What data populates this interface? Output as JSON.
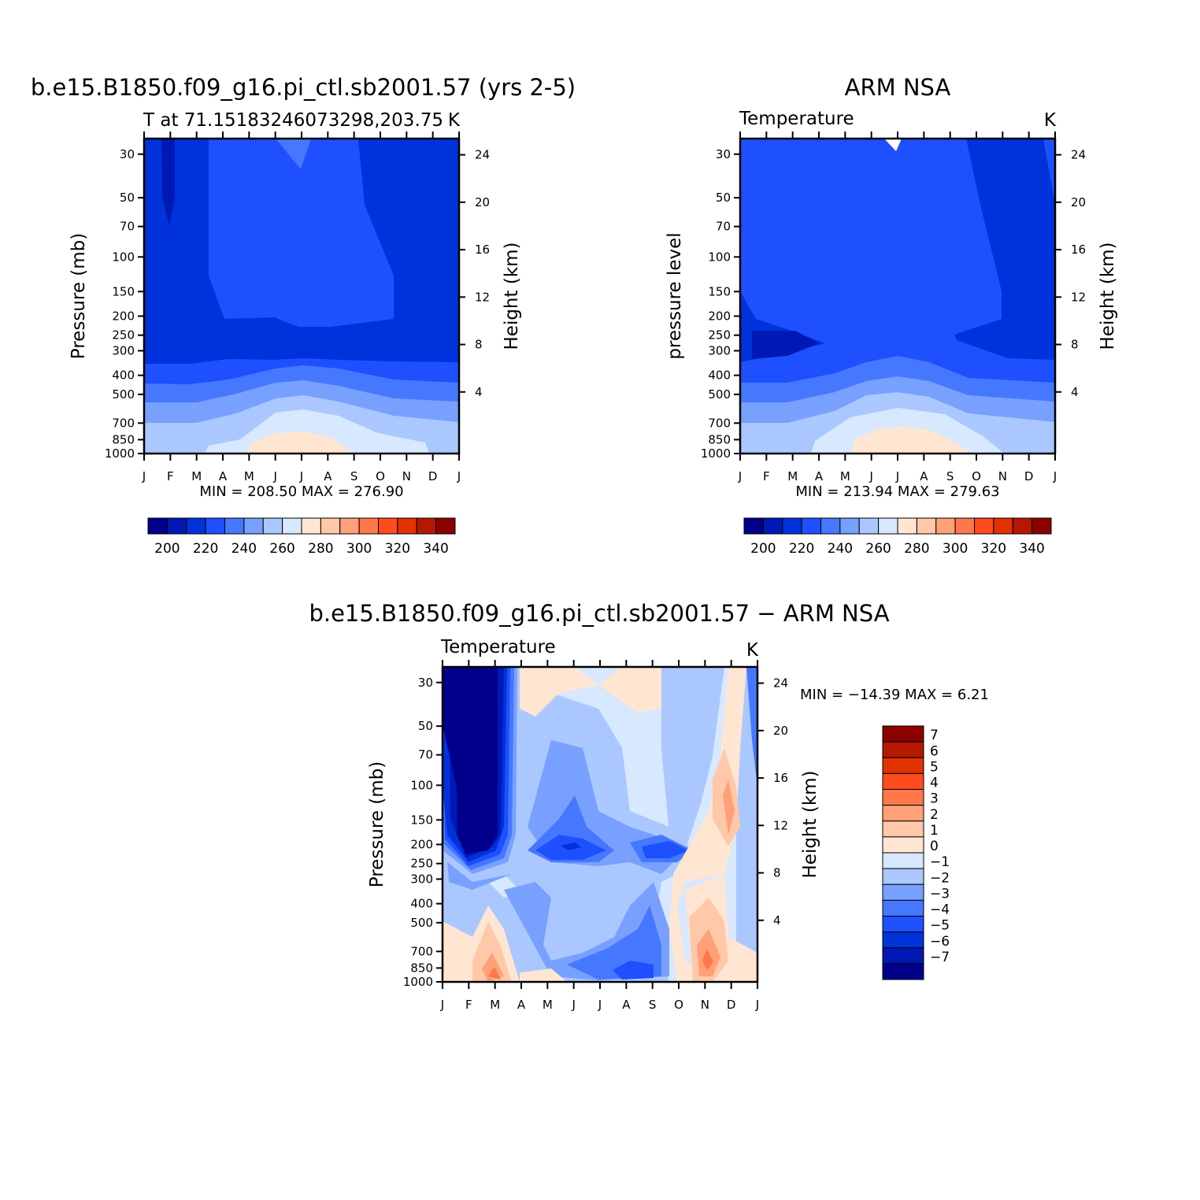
{
  "panels": [
    {
      "id": "model",
      "main_title": "b.e15.B1850.f09_g16.pi_ctl.sb2001.57 (yrs 2-5)",
      "left_label": "T at 71.15183246073298,203.75",
      "right_label": "K",
      "ylabel": "Pressure (mb)",
      "y2label": "Height (km)",
      "minmax": "MIN = 208.50 MAX = 276.90"
    },
    {
      "id": "obs",
      "main_title": "ARM NSA",
      "left_label": "Temperature",
      "right_label": "K",
      "ylabel": "pressure level",
      "y2label": "Height (km)",
      "minmax": "MIN = 213.94 MAX = 279.63"
    },
    {
      "id": "diff",
      "main_title": "b.e15.B1850.f09_g16.pi_ctl.sb2001.57 − ARM NSA",
      "left_label": "Temperature",
      "right_label": "K",
      "ylabel": "Pressure (mb)",
      "y2label": "Height (km)",
      "minmax": "MIN = −14.39 MAX =    6.21"
    }
  ],
  "chart_data": [
    {
      "type": "heatmap",
      "title": "b.e15.B1850.f09_g16.pi_ctl.sb2001.57 (yrs 2-5)",
      "subtitle": "T at 71.15183246073298,203.75",
      "units": "K",
      "xlabel": "",
      "ylabel": "Pressure (mb)",
      "y2label": "Height (km)",
      "x_ticks": [
        "J",
        "F",
        "M",
        "A",
        "M",
        "J",
        "J",
        "A",
        "S",
        "O",
        "N",
        "D",
        "J"
      ],
      "y_ticks": [
        30,
        50,
        70,
        100,
        150,
        200,
        250,
        300,
        400,
        500,
        700,
        850,
        1000
      ],
      "y_scale": "log",
      "y_reversed": true,
      "y2_ticks": [
        4,
        8,
        12,
        16,
        20,
        24
      ],
      "min": 208.5,
      "max": 276.9,
      "levels": [
        200,
        210,
        220,
        230,
        240,
        250,
        260,
        270,
        280,
        290,
        300,
        310,
        320,
        330,
        340
      ],
      "colorbar_labels": [
        200,
        220,
        240,
        260,
        280,
        300,
        320,
        340
      ],
      "colorbar_position": "bottom"
    },
    {
      "type": "heatmap",
      "title": "ARM NSA",
      "subtitle": "Temperature",
      "units": "K",
      "xlabel": "",
      "ylabel": "pressure level",
      "y2label": "Height (km)",
      "x_ticks": [
        "J",
        "F",
        "M",
        "A",
        "M",
        "J",
        "J",
        "A",
        "S",
        "O",
        "N",
        "D",
        "J"
      ],
      "y_ticks": [
        30,
        50,
        70,
        100,
        150,
        200,
        250,
        300,
        400,
        500,
        700,
        850,
        1000
      ],
      "y_scale": "log",
      "y_reversed": true,
      "y2_ticks": [
        4,
        8,
        12,
        16,
        20,
        24
      ],
      "min": 213.94,
      "max": 279.63,
      "levels": [
        200,
        210,
        220,
        230,
        240,
        250,
        260,
        270,
        280,
        290,
        300,
        310,
        320,
        330,
        340
      ],
      "colorbar_labels": [
        200,
        220,
        240,
        260,
        280,
        300,
        320,
        340
      ],
      "colorbar_position": "bottom"
    },
    {
      "type": "heatmap",
      "title": "b.e15.B1850.f09_g16.pi_ctl.sb2001.57 − ARM NSA",
      "subtitle": "Temperature",
      "units": "K",
      "xlabel": "",
      "ylabel": "Pressure (mb)",
      "y2label": "Height (km)",
      "x_ticks": [
        "J",
        "F",
        "M",
        "A",
        "M",
        "J",
        "J",
        "A",
        "S",
        "O",
        "N",
        "D",
        "J"
      ],
      "y_ticks": [
        30,
        50,
        70,
        100,
        150,
        200,
        250,
        300,
        400,
        500,
        700,
        850,
        1000
      ],
      "y_scale": "log",
      "y_reversed": true,
      "y2_ticks": [
        4,
        8,
        12,
        16,
        20,
        24
      ],
      "min": -14.39,
      "max": 6.21,
      "levels": [
        -7,
        -6,
        -5,
        -4,
        -3,
        -2,
        -1,
        0,
        1,
        2,
        3,
        4,
        5,
        6,
        7
      ],
      "colorbar_labels": [
        "7",
        "6",
        "5",
        "4",
        "3",
        "2",
        "1",
        "0",
        "−1",
        "−2",
        "−3",
        "−4",
        "−5",
        "−6",
        "−7"
      ],
      "colorbar_position": "right"
    }
  ],
  "palette": [
    "#00008c",
    "#0019b4",
    "#0032dc",
    "#1e50ff",
    "#4678ff",
    "#78a0ff",
    "#aac8ff",
    "#d7e8ff",
    "#ffe6d2",
    "#ffc8a8",
    "#ffa078",
    "#ff784b",
    "#ff4b1e",
    "#e13200",
    "#b41900",
    "#8c0000"
  ]
}
